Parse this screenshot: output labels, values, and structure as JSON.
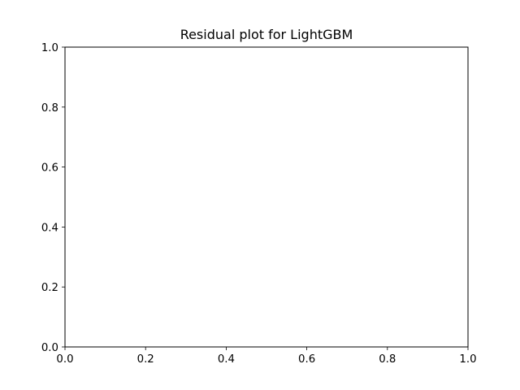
{
  "chart_data": {
    "type": "scatter",
    "title": "Residual plot for LightGBM",
    "xlabel": "",
    "ylabel": "",
    "xlim": [
      0.0,
      1.0
    ],
    "ylim": [
      0.0,
      1.0
    ],
    "x_ticks": [
      0.0,
      0.2,
      0.4,
      0.6,
      0.8,
      1.0
    ],
    "x_tick_labels": [
      "0.0",
      "0.2",
      "0.4",
      "0.6",
      "0.8",
      "1.0"
    ],
    "y_ticks": [
      0.0,
      0.2,
      0.4,
      0.6,
      0.8,
      1.0
    ],
    "y_tick_labels": [
      "0.0",
      "0.2",
      "0.4",
      "0.6",
      "0.8",
      "1.0"
    ],
    "grid": false,
    "series": [],
    "colors": {
      "axes": "#000000",
      "background": "#ffffff"
    }
  }
}
